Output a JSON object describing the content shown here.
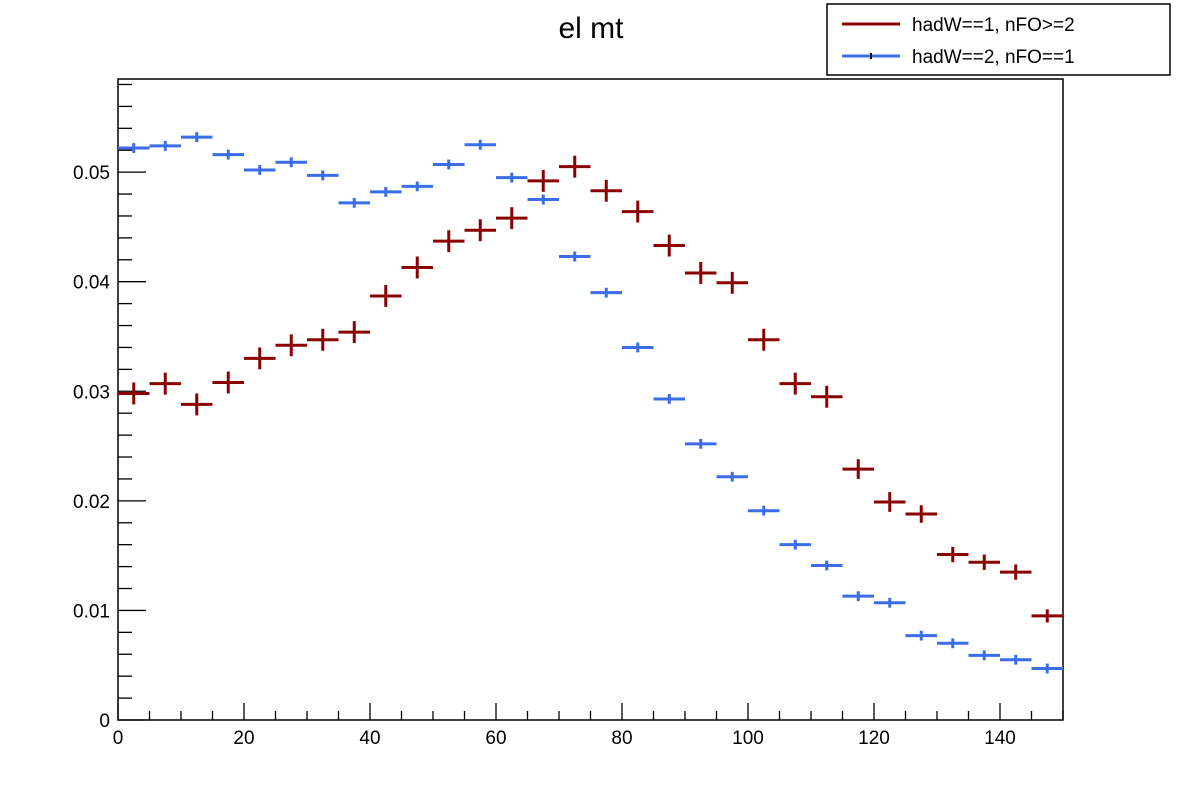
{
  "chart_data": {
    "type": "scatter",
    "title": "el mt",
    "xlabel": "",
    "ylabel": "",
    "xlim": [
      0,
      150
    ],
    "ylim": [
      0,
      0.0585
    ],
    "x_ticks": [
      0,
      20,
      40,
      60,
      80,
      100,
      120,
      140
    ],
    "y_ticks": [
      0,
      0.01,
      0.02,
      0.03,
      0.04,
      0.05
    ],
    "x_tick_labels": [
      "0",
      "20",
      "40",
      "60",
      "80",
      "100",
      "120",
      "140"
    ],
    "y_tick_labels": [
      "0",
      "0.01",
      "0.02",
      "0.03",
      "0.04",
      "0.05"
    ],
    "grid": false,
    "legend_position": "top-right",
    "bin_width": 5,
    "x": [
      2.5,
      7.5,
      12.5,
      17.5,
      22.5,
      27.5,
      32.5,
      37.5,
      42.5,
      47.5,
      52.5,
      57.5,
      62.5,
      67.5,
      72.5,
      77.5,
      82.5,
      87.5,
      92.5,
      97.5,
      102.5,
      107.5,
      112.5,
      117.5,
      122.5,
      127.5,
      132.5,
      137.5,
      142.5,
      147.5
    ],
    "series": [
      {
        "name": "hadW==1, nFO>=2",
        "color": "#8b0000",
        "values": [
          0.0298,
          0.0307,
          0.0288,
          0.0308,
          0.033,
          0.0342,
          0.0347,
          0.0354,
          0.0387,
          0.0413,
          0.0437,
          0.0447,
          0.0458,
          0.0492,
          0.0505,
          0.0483,
          0.0464,
          0.0433,
          0.0408,
          0.0399,
          0.0347,
          0.0307,
          0.0295,
          0.0229,
          0.0199,
          0.0188,
          0.0151,
          0.0144,
          0.0135,
          0.0095
        ],
        "errors": [
          0.001,
          0.001,
          0.001,
          0.001,
          0.001,
          0.001,
          0.001,
          0.001,
          0.001,
          0.001,
          0.001,
          0.001,
          0.001,
          0.001,
          0.001,
          0.001,
          0.001,
          0.001,
          0.001,
          0.001,
          0.001,
          0.001,
          0.001,
          0.0009,
          0.0009,
          0.0008,
          0.0007,
          0.0007,
          0.0007,
          0.0006
        ]
      },
      {
        "name": "hadW==2, nFO==1",
        "color": "#3a6ee8",
        "values": [
          0.0522,
          0.0524,
          0.0532,
          0.0516,
          0.0502,
          0.0509,
          0.0497,
          0.0472,
          0.0482,
          0.0487,
          0.0507,
          0.0525,
          0.0495,
          0.0475,
          0.0423,
          0.039,
          0.034,
          0.0293,
          0.0252,
          0.0222,
          0.0191,
          0.016,
          0.0141,
          0.0113,
          0.0107,
          0.0077,
          0.007,
          0.0059,
          0.0055,
          0.0047
        ]
      }
    ]
  }
}
